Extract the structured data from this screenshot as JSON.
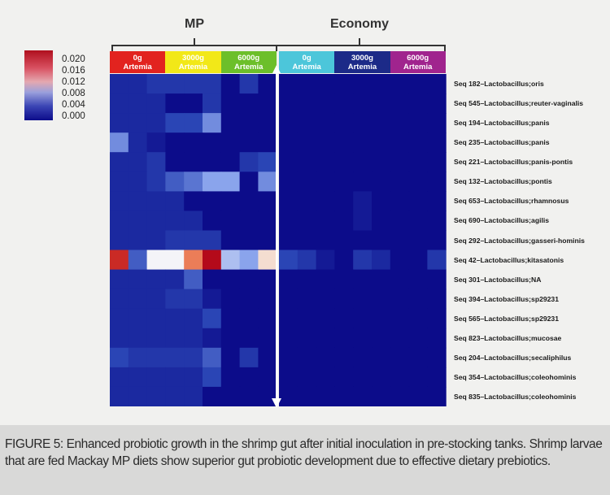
{
  "chart_data": {
    "type": "heatmap",
    "title": "",
    "groups": [
      {
        "name": "MP",
        "conditions": [
          "0g Artemia",
          "3000g Artemia",
          "6000g Artemia"
        ]
      },
      {
        "name": "Economy",
        "conditions": [
          "0g Artemia",
          "3000g Artemia",
          "6000g Artemia"
        ]
      }
    ],
    "conditions": [
      {
        "line1": "0g",
        "line2": "Artemia",
        "color": "#e2231f"
      },
      {
        "line1": "3000g",
        "line2": "Artemia",
        "color": "#f2e818"
      },
      {
        "line1": "6000g",
        "line2": "Artemia",
        "color": "#6cbf2a"
      },
      {
        "line1": "0g",
        "line2": "Artemia",
        "color": "#4cc6da"
      },
      {
        "line1": "3000g",
        "line2": "Artemia",
        "color": "#1c2a88"
      },
      {
        "line1": "6000g",
        "line2": "Artemia",
        "color": "#a0248e"
      }
    ],
    "replicates_per_condition": 3,
    "rows": [
      "Seq 182–Lactobacillus;oris",
      "Seq 545–Lactobacillus;reuter-vaginalis",
      "Seq 194–Lactobacillus;panis",
      "Seq 235–Lactobacillus;panis",
      "Seq 221–Lactobacillus;panis-pontis",
      "Seq 132–Lactobacillus;pontis",
      "Seq 653–Lactobacillus;rhamnosus",
      "Seq 690–Lactobacillus;agilis",
      "Seq 292–Lactobacillus;gasseri-hominis",
      "Seq 42–Lactobacillus;kitasatonis",
      "Seq 301–Lactobacillus;NA",
      "Seq 394–Lactobacillus;sp29231",
      "Seq 565–Lactobacillus;sp29231",
      "Seq 823–Lactobacillus;mucosae",
      "Seq 204–Lactobacillus;secaliphilus",
      "Seq 354–Lactobacillus;coleohominis",
      "Seq 835–Lactobacillus;coleohominis"
    ],
    "values": [
      [
        0.002,
        0.002,
        0.003,
        0.003,
        0.003,
        0.003,
        0.0,
        0.003,
        0.0,
        0,
        0,
        0,
        0,
        0,
        0,
        0,
        0,
        0
      ],
      [
        0.002,
        0.002,
        0.002,
        0.0,
        0.0,
        0.003,
        0.0,
        0.0,
        0.0,
        0,
        0,
        0,
        0,
        0,
        0,
        0,
        0,
        0
      ],
      [
        0.002,
        0.002,
        0.002,
        0.004,
        0.004,
        0.007,
        0.0,
        0.0,
        0.0,
        0,
        0,
        0,
        0,
        0,
        0,
        0,
        0,
        0
      ],
      [
        0.007,
        0.002,
        0.001,
        0.0,
        0.0,
        0.0,
        0.0,
        0.0,
        0.0,
        0,
        0,
        0,
        0,
        0,
        0,
        0,
        0,
        0
      ],
      [
        0.002,
        0.002,
        0.003,
        0.0,
        0.0,
        0.0,
        0.0,
        0.003,
        0.004,
        0,
        0,
        0,
        0,
        0,
        0,
        0,
        0,
        0
      ],
      [
        0.002,
        0.002,
        0.003,
        0.005,
        0.006,
        0.008,
        0.008,
        0.0,
        0.007,
        0,
        0,
        0,
        0,
        0,
        0,
        0,
        0,
        0
      ],
      [
        0.002,
        0.002,
        0.002,
        0.002,
        0.0,
        0.0,
        0.0,
        0.0,
        0.0,
        0,
        0,
        0,
        0,
        0.001,
        0,
        0,
        0,
        0
      ],
      [
        0.002,
        0.002,
        0.002,
        0.002,
        0.002,
        0.0,
        0.0,
        0.0,
        0.0,
        0,
        0,
        0,
        0,
        0.001,
        0,
        0,
        0,
        0
      ],
      [
        0.002,
        0.002,
        0.002,
        0.003,
        0.003,
        0.003,
        0.0,
        0.0,
        0.0,
        0,
        0,
        0,
        0,
        0,
        0,
        0,
        0,
        0
      ],
      [
        0.018,
        0.005,
        0.011,
        0.011,
        0.015,
        0.02,
        0.009,
        0.008,
        0.012,
        0.004,
        0.003,
        0.001,
        0,
        0.003,
        0.002,
        0,
        0,
        0.003
      ],
      [
        0.002,
        0.002,
        0.002,
        0.002,
        0.005,
        0.0,
        0.0,
        0.0,
        0.0,
        0,
        0,
        0,
        0,
        0,
        0,
        0,
        0,
        0
      ],
      [
        0.002,
        0.002,
        0.002,
        0.003,
        0.003,
        0.001,
        0.0,
        0.0,
        0.0,
        0,
        0,
        0,
        0,
        0,
        0,
        0,
        0,
        0
      ],
      [
        0.002,
        0.002,
        0.002,
        0.002,
        0.002,
        0.004,
        0.0,
        0.0,
        0.0,
        0,
        0,
        0,
        0,
        0,
        0,
        0,
        0,
        0
      ],
      [
        0.002,
        0.002,
        0.002,
        0.002,
        0.002,
        0.001,
        0.0,
        0.0,
        0.0,
        0,
        0,
        0,
        0,
        0,
        0,
        0,
        0,
        0
      ],
      [
        0.004,
        0.003,
        0.003,
        0.003,
        0.003,
        0.005,
        0.0,
        0.003,
        0.0,
        0,
        0,
        0,
        0,
        0,
        0,
        0,
        0,
        0
      ],
      [
        0.002,
        0.002,
        0.002,
        0.002,
        0.002,
        0.004,
        0.0,
        0.0,
        0.0,
        0,
        0,
        0,
        0,
        0,
        0,
        0,
        0,
        0
      ],
      [
        0.002,
        0.002,
        0.002,
        0.002,
        0.002,
        0.0,
        0.0,
        0.0,
        0.0,
        0,
        0,
        0,
        0,
        0,
        0,
        0,
        0,
        0
      ]
    ],
    "colorbar": {
      "range": [
        0.0,
        0.02
      ],
      "ticks": [
        "0.020",
        "0.016",
        "0.012",
        "0.008",
        "0.004",
        "0.000"
      ],
      "colors": [
        "#0c0c8a",
        "#2a45b5",
        "#8aa4ec",
        "#f4f4f8",
        "#f5b080",
        "#e04a30",
        "#b40a1a"
      ]
    }
  },
  "caption": {
    "label": "FIGURE 5:",
    "text": " Enhanced probiotic growth in the shrimp gut after initial inoculation in pre-stocking tanks. Shrimp larvae that are fed Mackay MP diets show superior gut probiotic development due to effective dietary prebiotics."
  }
}
